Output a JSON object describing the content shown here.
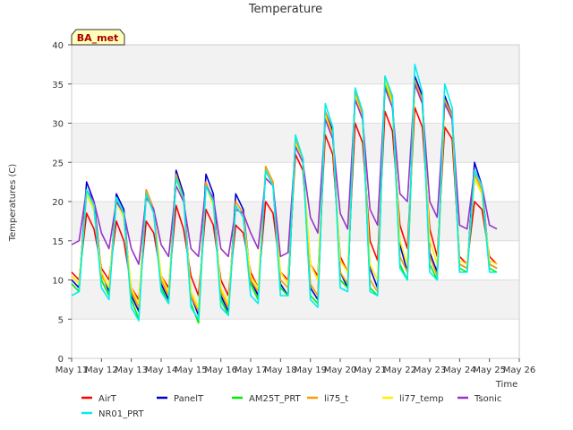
{
  "chart_data": {
    "type": "line",
    "title": "Temperature",
    "xlabel": "Time",
    "ylabel": "Temperatures (C)",
    "site_badge": "BA_met",
    "xlim": [
      11,
      26
    ],
    "ylim": [
      0,
      40
    ],
    "x_ticks": [
      {
        "value": 11,
        "label": "May 11"
      },
      {
        "value": 12,
        "label": "May 12"
      },
      {
        "value": 13,
        "label": "May 13"
      },
      {
        "value": 14,
        "label": "May 14"
      },
      {
        "value": 15,
        "label": "May 15"
      },
      {
        "value": 16,
        "label": "May 16"
      },
      {
        "value": 17,
        "label": "May 17"
      },
      {
        "value": 18,
        "label": "May 18"
      },
      {
        "value": 19,
        "label": "May 19"
      },
      {
        "value": 20,
        "label": "May 20"
      },
      {
        "value": 21,
        "label": "May 21"
      },
      {
        "value": 22,
        "label": "May 22"
      },
      {
        "value": 23,
        "label": "May 23"
      },
      {
        "value": 24,
        "label": "May 24"
      },
      {
        "value": 25,
        "label": "May 25"
      },
      {
        "value": 26,
        "label": "May 26"
      }
    ],
    "y_ticks": [
      0,
      5,
      10,
      15,
      20,
      25,
      30,
      35,
      40
    ],
    "banded_background": true,
    "legend_position": "bottom",
    "x_unit": "day of May",
    "series": [
      {
        "name": "AirT",
        "color": "#ff0000",
        "x": [
          11.0,
          11.25,
          11.5,
          11.75,
          12.0,
          12.25,
          12.5,
          12.75,
          13.0,
          13.25,
          13.5,
          13.75,
          14.0,
          14.25,
          14.5,
          14.75,
          15.0,
          15.25,
          15.5,
          15.75,
          16.0,
          16.25,
          16.5,
          16.75,
          17.0,
          17.25,
          17.5,
          17.75,
          18.0,
          18.25,
          18.5,
          18.75,
          19.0,
          19.25,
          19.5,
          19.75,
          20.0,
          20.25,
          20.5,
          20.75,
          21.0,
          21.25,
          21.5,
          21.75,
          22.0,
          22.25,
          22.5,
          22.75,
          23.0,
          23.25,
          23.5,
          23.75,
          24.0,
          24.25,
          24.5,
          24.75,
          25.0,
          25.25
        ],
        "y": [
          11.0,
          10.0,
          18.5,
          16.5,
          11.5,
          10.0,
          17.5,
          15.0,
          9.0,
          7.5,
          17.5,
          16.0,
          10.5,
          9.0,
          19.5,
          16.5,
          10.5,
          8.0,
          19.0,
          17.0,
          10.0,
          8.0,
          17.0,
          16.0,
          11.0,
          9.0,
          20.0,
          18.5,
          11.0,
          10.0,
          26.0,
          24.0,
          12.0,
          10.5,
          28.5,
          26.0,
          13.0,
          11.0,
          30.0,
          27.5,
          15.0,
          12.5,
          31.5,
          29.0,
          17.0,
          14.0,
          32.0,
          29.5,
          16.5,
          13.0,
          29.5,
          28.0,
          13.0,
          12.0,
          20.0,
          19.0,
          13.0,
          12.0
        ]
      },
      {
        "name": "PanelT",
        "color": "#0000cc",
        "x": [
          11.0,
          11.25,
          11.5,
          11.75,
          12.0,
          12.25,
          12.5,
          12.75,
          13.0,
          13.25,
          13.5,
          13.75,
          14.0,
          14.25,
          14.5,
          14.75,
          15.0,
          15.25,
          15.5,
          15.75,
          16.0,
          16.25,
          16.5,
          16.75,
          17.0,
          17.25,
          17.5,
          17.75,
          18.0,
          18.25,
          18.5,
          18.75,
          19.0,
          19.25,
          19.5,
          19.75,
          20.0,
          20.25,
          20.5,
          20.75,
          21.0,
          21.25,
          21.5,
          21.75,
          22.0,
          22.25,
          22.5,
          22.75,
          23.0,
          23.25,
          23.5,
          23.75,
          24.0,
          24.25,
          24.5,
          24.75,
          25.0,
          25.25
        ],
        "y": [
          10.0,
          9.0,
          22.5,
          20.0,
          11.0,
          8.5,
          21.0,
          19.0,
          8.0,
          6.0,
          21.5,
          19.0,
          9.5,
          7.5,
          24.0,
          21.0,
          8.0,
          5.5,
          23.5,
          21.0,
          8.0,
          6.0,
          21.0,
          19.0,
          10.0,
          8.0,
          24.0,
          22.0,
          9.5,
          8.0,
          28.0,
          25.5,
          9.0,
          7.5,
          31.5,
          29.0,
          11.0,
          9.0,
          34.0,
          31.0,
          11.5,
          9.0,
          35.5,
          33.0,
          14.5,
          11.0,
          36.0,
          33.5,
          13.5,
          11.0,
          33.5,
          31.0,
          12.0,
          11.5,
          25.0,
          22.0,
          12.0,
          11.5
        ]
      },
      {
        "name": "AM25T_PRT",
        "color": "#00ee00",
        "x": [
          11.0,
          11.25,
          11.5,
          11.75,
          12.0,
          12.25,
          12.5,
          12.75,
          13.0,
          13.25,
          13.5,
          13.75,
          14.0,
          14.25,
          14.5,
          14.75,
          15.0,
          15.25,
          15.5,
          15.75,
          16.0,
          16.25,
          16.5,
          16.75,
          17.0,
          17.25,
          17.5,
          17.75,
          18.0,
          18.25,
          18.5,
          18.75,
          19.0,
          19.25,
          19.5,
          19.75,
          20.0,
          20.25,
          20.5,
          20.75,
          21.0,
          21.25,
          21.5,
          21.75,
          22.0,
          22.25,
          22.5,
          22.75,
          23.0,
          23.25,
          23.5,
          23.75,
          24.0,
          24.25,
          24.5,
          24.75,
          25.0,
          25.25
        ],
        "y": [
          9.5,
          8.5,
          21.0,
          19.0,
          10.0,
          8.0,
          20.0,
          18.0,
          7.5,
          5.0,
          21.0,
          18.5,
          9.0,
          7.0,
          23.0,
          20.5,
          7.0,
          4.5,
          22.0,
          20.0,
          7.5,
          5.5,
          19.5,
          18.0,
          9.5,
          7.5,
          24.0,
          22.0,
          9.0,
          8.0,
          27.5,
          25.0,
          8.0,
          7.0,
          31.0,
          28.5,
          10.0,
          9.0,
          33.5,
          30.5,
          9.0,
          8.0,
          35.0,
          32.5,
          12.0,
          10.0,
          35.0,
          32.5,
          12.0,
          10.0,
          33.0,
          30.5,
          11.5,
          11.0,
          23.0,
          21.0,
          11.5,
          11.0
        ]
      },
      {
        "name": "li75_t",
        "color": "#ff9900",
        "x": [
          11.0,
          11.25,
          11.5,
          11.75,
          12.0,
          12.25,
          12.5,
          12.75,
          13.0,
          13.25,
          13.5,
          13.75,
          14.0,
          14.25,
          14.5,
          14.75,
          15.0,
          15.25,
          15.5,
          15.75,
          16.0,
          16.25,
          16.5,
          16.75,
          17.0,
          17.25,
          17.5,
          17.75,
          18.0,
          18.25,
          18.5,
          18.75,
          19.0,
          19.25,
          19.5,
          19.75,
          20.0,
          20.25,
          20.5,
          20.75,
          21.0,
          21.25,
          21.5,
          21.75,
          22.0,
          22.25,
          22.5,
          22.75,
          23.0,
          23.25,
          23.5,
          23.75,
          24.0,
          24.25,
          24.5,
          24.75,
          25.0,
          25.25
        ],
        "y": [
          10.5,
          9.5,
          21.5,
          19.5,
          10.5,
          9.0,
          20.5,
          18.0,
          8.5,
          6.5,
          21.5,
          19.0,
          10.0,
          8.0,
          23.5,
          20.5,
          8.0,
          6.0,
          22.5,
          20.0,
          8.5,
          6.5,
          20.0,
          18.5,
          10.0,
          8.5,
          24.5,
          22.5,
          10.0,
          9.0,
          28.0,
          25.5,
          9.5,
          8.0,
          31.5,
          28.5,
          11.0,
          9.5,
          34.0,
          31.0,
          10.0,
          8.5,
          36.0,
          33.0,
          13.0,
          11.0,
          35.5,
          33.0,
          13.0,
          10.5,
          33.0,
          31.0,
          12.0,
          11.5,
          23.5,
          21.5,
          12.0,
          11.5
        ]
      },
      {
        "name": "li77_temp",
        "color": "#ffee00",
        "x": [
          11.0,
          11.25,
          11.5,
          11.75,
          12.0,
          12.25,
          12.5,
          12.75,
          13.0,
          13.25,
          13.5,
          13.75,
          14.0,
          14.25,
          14.5,
          14.75,
          15.0,
          15.25,
          15.5,
          15.75,
          16.0,
          16.25,
          16.5,
          16.75,
          17.0,
          17.25,
          17.5,
          17.75,
          18.0,
          18.25,
          18.5,
          18.75,
          19.0,
          19.25,
          19.5,
          19.75,
          20.0,
          20.25,
          20.5,
          20.75,
          21.0,
          21.25,
          21.5,
          21.75,
          22.0,
          22.25,
          22.5,
          22.75,
          23.0,
          23.25,
          23.5,
          23.75,
          24.0,
          24.25,
          24.5,
          24.75,
          25.0,
          25.25
        ],
        "y": [
          10.5,
          9.5,
          21.0,
          19.0,
          11.0,
          9.0,
          20.0,
          18.0,
          9.0,
          7.0,
          21.0,
          18.5,
          10.5,
          8.5,
          23.0,
          20.0,
          8.5,
          6.5,
          22.0,
          19.5,
          9.0,
          7.0,
          19.5,
          18.0,
          10.5,
          9.0,
          24.0,
          22.0,
          11.0,
          9.5,
          27.5,
          25.0,
          12.0,
          10.0,
          31.0,
          28.0,
          12.5,
          11.0,
          33.5,
          30.5,
          12.0,
          10.0,
          35.5,
          32.5,
          15.0,
          12.0,
          35.0,
          32.5,
          15.0,
          12.0,
          32.5,
          30.5,
          12.5,
          12.0,
          23.0,
          21.0,
          12.5,
          12.0
        ]
      },
      {
        "name": "Tsonic",
        "color": "#9933cc",
        "x": [
          11.0,
          11.25,
          11.5,
          11.75,
          12.0,
          12.25,
          12.5,
          12.75,
          13.0,
          13.25,
          13.5,
          13.75,
          14.0,
          14.25,
          14.5,
          14.75,
          15.0,
          15.25,
          15.5,
          15.75,
          16.0,
          16.25,
          16.5,
          16.75,
          17.0,
          17.25,
          17.5,
          17.75,
          18.0,
          18.25,
          18.5,
          18.75,
          19.0,
          19.25,
          19.5,
          19.75,
          20.0,
          20.25,
          20.5,
          20.75,
          21.0,
          21.25,
          21.5,
          21.75,
          22.0,
          22.25,
          22.5,
          22.75,
          23.0,
          23.25,
          23.5,
          23.75,
          24.0,
          24.25,
          24.5,
          24.75,
          25.0,
          25.25
        ],
        "y": [
          14.5,
          15.0,
          21.5,
          20.0,
          16.0,
          14.0,
          20.0,
          18.5,
          14.0,
          12.0,
          20.5,
          19.0,
          14.5,
          13.0,
          22.0,
          20.0,
          14.0,
          13.0,
          22.0,
          20.5,
          14.0,
          13.0,
          19.0,
          18.5,
          16.0,
          14.0,
          23.0,
          22.0,
          13.0,
          13.5,
          27.0,
          25.0,
          18.0,
          16.0,
          30.5,
          28.0,
          18.5,
          16.5,
          33.0,
          30.5,
          19.0,
          17.0,
          34.5,
          32.0,
          21.0,
          20.0,
          35.0,
          32.5,
          20.0,
          18.0,
          32.5,
          30.5,
          17.0,
          16.5,
          24.0,
          22.0,
          17.0,
          16.5
        ]
      },
      {
        "name": "NR01_PRT",
        "color": "#00eeee",
        "x": [
          11.0,
          11.25,
          11.5,
          11.75,
          12.0,
          12.25,
          12.5,
          12.75,
          13.0,
          13.25,
          13.5,
          13.75,
          14.0,
          14.25,
          14.5,
          14.75,
          15.0,
          15.25,
          15.5,
          15.75,
          16.0,
          16.25,
          16.5,
          16.75,
          17.0,
          17.25,
          17.5,
          17.75,
          18.0,
          18.25,
          18.5,
          18.75,
          19.0,
          19.25,
          19.5,
          19.75,
          20.0,
          20.25,
          20.5,
          20.75,
          21.0,
          21.25,
          21.5,
          21.75,
          22.0,
          22.25,
          22.5,
          22.75,
          23.0,
          23.25,
          23.5,
          23.75,
          24.0,
          24.25,
          24.5,
          24.75,
          25.0,
          25.25
        ],
        "y": [
          8.0,
          8.5,
          21.5,
          19.5,
          9.0,
          7.5,
          20.5,
          18.5,
          6.5,
          4.8,
          21.0,
          18.5,
          8.5,
          7.0,
          23.0,
          20.5,
          6.5,
          5.0,
          22.0,
          20.0,
          6.5,
          5.5,
          19.5,
          18.0,
          8.0,
          7.0,
          24.0,
          22.0,
          8.0,
          8.0,
          28.5,
          25.5,
          7.5,
          6.5,
          32.5,
          29.5,
          9.0,
          8.5,
          34.5,
          31.5,
          8.5,
          8.0,
          36.0,
          33.5,
          11.5,
          10.0,
          37.5,
          34.0,
          11.0,
          10.0,
          35.0,
          32.0,
          11.0,
          11.0,
          24.0,
          22.0,
          11.0,
          11.0
        ]
      }
    ]
  }
}
